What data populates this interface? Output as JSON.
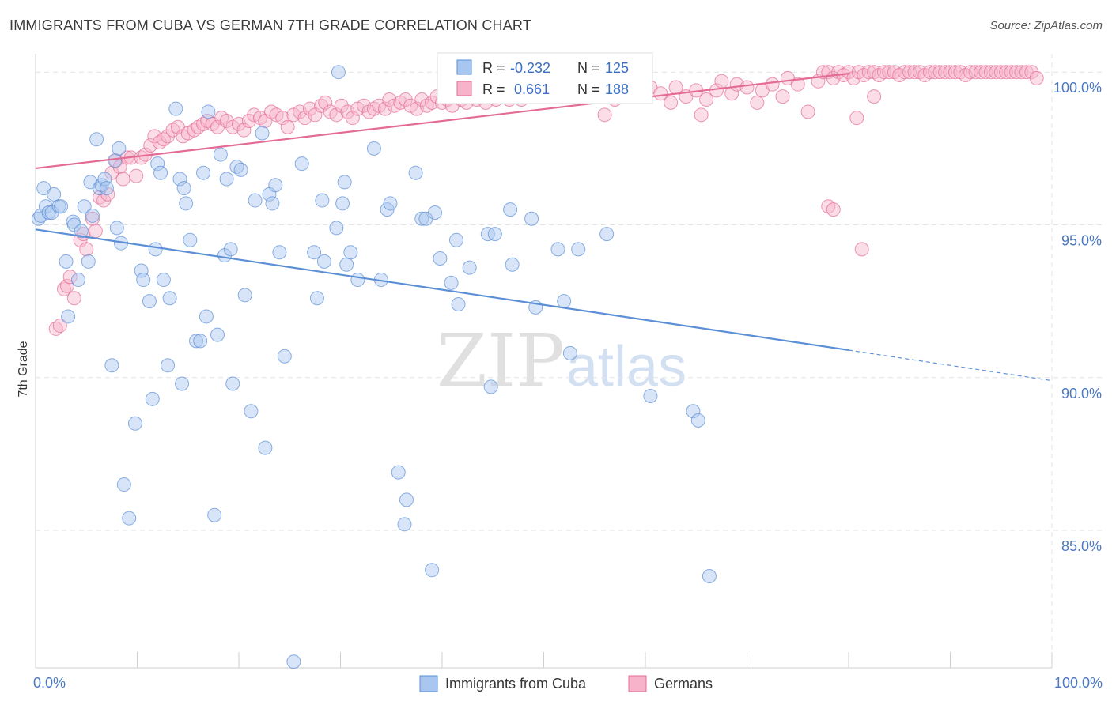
{
  "title": "IMMIGRANTS FROM CUBA VS GERMAN 7TH GRADE CORRELATION CHART",
  "source": "Source: ZipAtlas.com",
  "watermark": {
    "zip": "ZIP",
    "atlas": "atlas"
  },
  "colors": {
    "blue": "#5b8fd6",
    "blue_fill": "#a9c6f0",
    "pink": "#e46b95",
    "pink_fill": "#f6b3c9",
    "tick_text": "#4a78c2"
  },
  "legend_top": {
    "rows": [
      {
        "r_label": "R =",
        "r_value": "-0.232",
        "n_label": "N =",
        "n_value": "125"
      },
      {
        "r_label": "R =",
        "r_value": " 0.661",
        "n_label": "N =",
        "n_value": "188"
      }
    ]
  },
  "legend_bottom": {
    "items": [
      "Immigrants from Cuba",
      "Germans"
    ]
  },
  "chart_data": {
    "type": "scatter",
    "xlabel": "",
    "ylabel": "7th Grade",
    "x_ticks_labels": [
      "0.0%",
      "100.0%"
    ],
    "y_tick_labels": [
      "100.0%",
      "95.0%",
      "90.0%",
      "85.0%"
    ],
    "xlim": [
      0,
      100
    ],
    "ylim": [
      80.5,
      100.6
    ],
    "y_ticks": [
      100,
      95,
      90,
      85
    ],
    "grid": true,
    "legend_placement": "bottom-center",
    "series": [
      {
        "name": "Immigrants from Cuba",
        "color": "#5b8fd6",
        "r": -0.232,
        "n": 125,
        "trend": {
          "x0": 0,
          "y0": 94.85,
          "x1": 80,
          "y1": 90.9,
          "dashed_to_x": 100,
          "dashed_to_y": 89.9
        },
        "points": [
          [
            0.3,
            95.2
          ],
          [
            0.5,
            95.3
          ],
          [
            0.8,
            96.2
          ],
          [
            1.0,
            95.6
          ],
          [
            1.3,
            95.4
          ],
          [
            1.6,
            95.4
          ],
          [
            1.8,
            96.0
          ],
          [
            2.3,
            95.6
          ],
          [
            2.5,
            95.6
          ],
          [
            3.0,
            93.8
          ],
          [
            3.2,
            92.0
          ],
          [
            3.7,
            95.1
          ],
          [
            3.8,
            95.0
          ],
          [
            4.2,
            93.2
          ],
          [
            4.5,
            94.8
          ],
          [
            4.8,
            95.6
          ],
          [
            5.2,
            93.8
          ],
          [
            5.4,
            96.4
          ],
          [
            5.6,
            95.3
          ],
          [
            6.0,
            97.8
          ],
          [
            6.3,
            96.2
          ],
          [
            6.5,
            96.3
          ],
          [
            6.8,
            96.5
          ],
          [
            7.0,
            96.2
          ],
          [
            7.5,
            90.4
          ],
          [
            7.8,
            97.1
          ],
          [
            8.0,
            94.9
          ],
          [
            8.2,
            97.5
          ],
          [
            8.4,
            94.4
          ],
          [
            8.7,
            86.5
          ],
          [
            9.2,
            85.4
          ],
          [
            9.8,
            88.5
          ],
          [
            10.4,
            93.5
          ],
          [
            10.6,
            93.2
          ],
          [
            11.2,
            92.5
          ],
          [
            11.5,
            89.3
          ],
          [
            11.8,
            94.2
          ],
          [
            12.0,
            97.0
          ],
          [
            12.3,
            96.7
          ],
          [
            12.6,
            93.2
          ],
          [
            13.0,
            90.4
          ],
          [
            13.2,
            92.6
          ],
          [
            13.8,
            98.8
          ],
          [
            14.2,
            96.5
          ],
          [
            14.4,
            89.8
          ],
          [
            14.6,
            96.2
          ],
          [
            14.8,
            95.7
          ],
          [
            15.2,
            94.5
          ],
          [
            15.8,
            91.2
          ],
          [
            16.2,
            91.2
          ],
          [
            16.5,
            96.7
          ],
          [
            16.8,
            92.0
          ],
          [
            17.0,
            98.7
          ],
          [
            17.6,
            85.5
          ],
          [
            17.9,
            91.4
          ],
          [
            18.2,
            97.3
          ],
          [
            18.6,
            94.0
          ],
          [
            18.8,
            96.5
          ],
          [
            19.2,
            94.2
          ],
          [
            19.4,
            89.8
          ],
          [
            19.8,
            96.9
          ],
          [
            20.2,
            96.8
          ],
          [
            20.6,
            92.7
          ],
          [
            21.2,
            88.9
          ],
          [
            21.6,
            95.8
          ],
          [
            22.3,
            98.0
          ],
          [
            22.6,
            87.7
          ],
          [
            23.0,
            96.0
          ],
          [
            23.3,
            95.7
          ],
          [
            23.6,
            96.3
          ],
          [
            24.0,
            94.1
          ],
          [
            24.5,
            90.7
          ],
          [
            25.4,
            80.7
          ],
          [
            26.2,
            97.0
          ],
          [
            27.4,
            94.1
          ],
          [
            27.7,
            92.6
          ],
          [
            28.2,
            95.8
          ],
          [
            28.4,
            93.8
          ],
          [
            29.6,
            94.9
          ],
          [
            29.8,
            100.0
          ],
          [
            30.2,
            95.7
          ],
          [
            30.4,
            96.4
          ],
          [
            30.6,
            93.7
          ],
          [
            31.0,
            94.1
          ],
          [
            31.7,
            93.2
          ],
          [
            33.3,
            97.5
          ],
          [
            34.0,
            93.2
          ],
          [
            34.6,
            95.5
          ],
          [
            34.9,
            95.7
          ],
          [
            35.7,
            86.9
          ],
          [
            36.3,
            85.2
          ],
          [
            36.5,
            86.0
          ],
          [
            37.4,
            96.7
          ],
          [
            38.0,
            95.2
          ],
          [
            38.4,
            95.2
          ],
          [
            39.0,
            83.7
          ],
          [
            39.3,
            95.4
          ],
          [
            39.8,
            93.9
          ],
          [
            40.9,
            93.1
          ],
          [
            41.4,
            94.5
          ],
          [
            41.6,
            92.4
          ],
          [
            42.7,
            93.6
          ],
          [
            44.5,
            94.7
          ],
          [
            44.8,
            89.7
          ],
          [
            45.2,
            94.7
          ],
          [
            46.7,
            95.5
          ],
          [
            46.9,
            93.7
          ],
          [
            48.8,
            95.2
          ],
          [
            49.2,
            92.3
          ],
          [
            51.4,
            94.2
          ],
          [
            52.0,
            92.5
          ],
          [
            52.6,
            90.8
          ],
          [
            53.4,
            94.2
          ],
          [
            56.2,
            94.7
          ],
          [
            60.5,
            89.4
          ],
          [
            64.7,
            88.9
          ],
          [
            65.2,
            88.6
          ],
          [
            66.3,
            83.5
          ]
        ]
      },
      {
        "name": "Germans",
        "color": "#e46b95",
        "r": 0.661,
        "n": 188,
        "trend": {
          "x0": 0,
          "y0": 96.85,
          "x1": 80,
          "y1": 99.95
        },
        "points": [
          [
            2.0,
            91.6
          ],
          [
            2.4,
            91.7
          ],
          [
            2.8,
            92.9
          ],
          [
            3.1,
            93.0
          ],
          [
            3.4,
            93.3
          ],
          [
            3.8,
            92.6
          ],
          [
            4.4,
            94.5
          ],
          [
            4.7,
            94.7
          ],
          [
            5.0,
            94.2
          ],
          [
            5.6,
            95.2
          ],
          [
            5.9,
            94.8
          ],
          [
            6.3,
            95.9
          ],
          [
            6.7,
            95.8
          ],
          [
            7.1,
            96.0
          ],
          [
            7.5,
            96.7
          ],
          [
            7.9,
            97.1
          ],
          [
            8.3,
            96.9
          ],
          [
            8.6,
            96.5
          ],
          [
            9.0,
            97.2
          ],
          [
            9.4,
            97.2
          ],
          [
            9.9,
            96.6
          ],
          [
            10.4,
            97.2
          ],
          [
            10.8,
            97.3
          ],
          [
            11.3,
            97.6
          ],
          [
            11.7,
            97.9
          ],
          [
            12.2,
            97.7
          ],
          [
            12.6,
            97.8
          ],
          [
            13.0,
            97.9
          ],
          [
            13.5,
            98.1
          ],
          [
            14.0,
            98.2
          ],
          [
            14.5,
            97.9
          ],
          [
            15.0,
            98.0
          ],
          [
            15.6,
            98.1
          ],
          [
            16.0,
            98.2
          ],
          [
            16.5,
            98.3
          ],
          [
            16.9,
            98.4
          ],
          [
            17.4,
            98.3
          ],
          [
            17.9,
            98.2
          ],
          [
            18.3,
            98.5
          ],
          [
            18.8,
            98.4
          ],
          [
            19.4,
            98.2
          ],
          [
            20.0,
            98.3
          ],
          [
            20.5,
            98.1
          ],
          [
            21.0,
            98.4
          ],
          [
            21.5,
            98.6
          ],
          [
            22.1,
            98.5
          ],
          [
            22.6,
            98.4
          ],
          [
            23.2,
            98.7
          ],
          [
            23.7,
            98.6
          ],
          [
            24.3,
            98.5
          ],
          [
            24.8,
            98.2
          ],
          [
            25.4,
            98.6
          ],
          [
            26.0,
            98.7
          ],
          [
            26.5,
            98.5
          ],
          [
            27.0,
            98.8
          ],
          [
            27.5,
            98.6
          ],
          [
            28.1,
            98.9
          ],
          [
            28.5,
            99.0
          ],
          [
            29.0,
            98.7
          ],
          [
            29.6,
            98.6
          ],
          [
            30.1,
            98.9
          ],
          [
            30.7,
            98.7
          ],
          [
            31.2,
            98.5
          ],
          [
            31.7,
            98.8
          ],
          [
            32.3,
            98.9
          ],
          [
            32.8,
            98.7
          ],
          [
            33.3,
            98.8
          ],
          [
            33.8,
            98.9
          ],
          [
            34.4,
            98.8
          ],
          [
            34.8,
            99.1
          ],
          [
            35.3,
            98.9
          ],
          [
            35.9,
            99.0
          ],
          [
            36.4,
            99.1
          ],
          [
            36.9,
            98.9
          ],
          [
            37.5,
            98.8
          ],
          [
            38.0,
            99.1
          ],
          [
            38.5,
            98.9
          ],
          [
            39.0,
            99.0
          ],
          [
            39.5,
            99.2
          ],
          [
            40.0,
            99.0
          ],
          [
            40.5,
            99.1
          ],
          [
            41.0,
            98.9
          ],
          [
            41.4,
            99.2
          ],
          [
            41.9,
            99.1
          ],
          [
            42.4,
            99.0
          ],
          [
            42.9,
            99.3
          ],
          [
            43.4,
            99.1
          ],
          [
            43.9,
            99.2
          ],
          [
            44.3,
            99.0
          ],
          [
            44.8,
            99.3
          ],
          [
            45.3,
            99.1
          ],
          [
            45.7,
            99.2
          ],
          [
            46.2,
            99.4
          ],
          [
            46.6,
            99.1
          ],
          [
            47.0,
            99.2
          ],
          [
            47.4,
            99.3
          ],
          [
            47.8,
            99.1
          ],
          [
            48.2,
            99.4
          ],
          [
            48.6,
            99.2
          ],
          [
            49.0,
            99.3
          ],
          [
            49.4,
            99.5
          ],
          [
            49.8,
            99.2
          ],
          [
            50.2,
            99.4
          ],
          [
            50.6,
            99.3
          ],
          [
            51.0,
            99.5
          ],
          [
            51.4,
            99.2
          ],
          [
            51.8,
            99.4
          ],
          [
            52.2,
            99.3
          ],
          [
            52.6,
            99.6
          ],
          [
            53.0,
            99.4
          ],
          [
            53.4,
            99.2
          ],
          [
            53.8,
            99.5
          ],
          [
            56.0,
            98.6
          ],
          [
            57.0,
            99.1
          ],
          [
            58.0,
            99.4
          ],
          [
            59.0,
            99.2
          ],
          [
            60.5,
            99.5
          ],
          [
            61.5,
            99.3
          ],
          [
            62.5,
            99.0
          ],
          [
            63.0,
            99.5
          ],
          [
            64.0,
            99.2
          ],
          [
            65.0,
            99.4
          ],
          [
            65.5,
            98.6
          ],
          [
            66.0,
            99.1
          ],
          [
            67.0,
            99.4
          ],
          [
            67.5,
            99.7
          ],
          [
            68.5,
            99.3
          ],
          [
            69.0,
            99.6
          ],
          [
            70.0,
            99.5
          ],
          [
            71.0,
            99.0
          ],
          [
            71.5,
            99.4
          ],
          [
            72.5,
            99.6
          ],
          [
            73.5,
            99.2
          ],
          [
            74.0,
            99.8
          ],
          [
            75.0,
            99.6
          ],
          [
            76.0,
            98.7
          ],
          [
            77.0,
            99.7
          ],
          [
            77.5,
            100.0
          ],
          [
            78.0,
            100.0
          ],
          [
            78.5,
            99.8
          ],
          [
            79.0,
            100.0
          ],
          [
            79.5,
            99.9
          ],
          [
            80.0,
            100.0
          ],
          [
            80.5,
            99.8
          ],
          [
            81.0,
            100.0
          ],
          [
            81.5,
            99.9
          ],
          [
            82.0,
            100.0
          ],
          [
            82.5,
            100.0
          ],
          [
            83.0,
            99.9
          ],
          [
            83.5,
            100.0
          ],
          [
            84.0,
            100.0
          ],
          [
            84.5,
            100.0
          ],
          [
            85.0,
            99.9
          ],
          [
            85.5,
            100.0
          ],
          [
            86.0,
            100.0
          ],
          [
            86.5,
            100.0
          ],
          [
            87.0,
            100.0
          ],
          [
            87.5,
            99.9
          ],
          [
            88.0,
            100.0
          ],
          [
            88.5,
            100.0
          ],
          [
            89.0,
            100.0
          ],
          [
            89.5,
            100.0
          ],
          [
            90.0,
            100.0
          ],
          [
            90.5,
            100.0
          ],
          [
            91.0,
            100.0
          ],
          [
            91.5,
            99.9
          ],
          [
            92.0,
            100.0
          ],
          [
            92.5,
            100.0
          ],
          [
            93.0,
            100.0
          ],
          [
            93.5,
            100.0
          ],
          [
            94.0,
            100.0
          ],
          [
            94.5,
            100.0
          ],
          [
            95.0,
            100.0
          ],
          [
            95.5,
            100.0
          ],
          [
            96.0,
            100.0
          ],
          [
            96.5,
            100.0
          ],
          [
            97.0,
            100.0
          ],
          [
            97.5,
            100.0
          ],
          [
            98.0,
            100.0
          ],
          [
            98.5,
            99.8
          ],
          [
            78.0,
            95.6
          ],
          [
            78.5,
            95.5
          ],
          [
            81.3,
            94.2
          ],
          [
            80.8,
            98.5
          ],
          [
            82.5,
            99.2
          ]
        ]
      }
    ]
  }
}
